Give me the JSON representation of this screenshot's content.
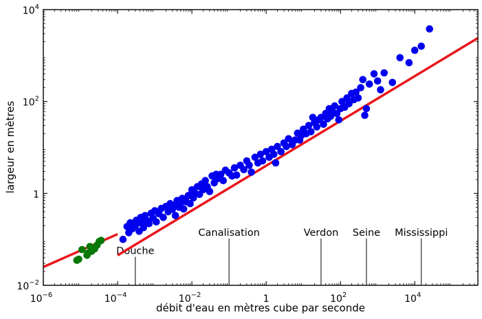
{
  "chart_data": {
    "type": "scatter",
    "xlabel": "débit d'eau en mètres cube par seconde",
    "ylabel": "largeur en mètres",
    "xscale": "log",
    "yscale": "log",
    "xlim": [
      1e-06,
      500000
    ],
    "ylim": [
      0.01,
      10000
    ],
    "grid": false,
    "x_ticks": [
      {
        "value": 1e-06,
        "base": "10",
        "exp": "−6"
      },
      {
        "value": 0.0001,
        "base": "10",
        "exp": "−4"
      },
      {
        "value": 0.01,
        "base": "10",
        "exp": "−2"
      },
      {
        "value": 1,
        "base": "1",
        "exp": ""
      },
      {
        "value": 100,
        "base": "10",
        "exp": "2"
      },
      {
        "value": 10000,
        "base": "10",
        "exp": "4"
      }
    ],
    "y_ticks": [
      {
        "value": 0.01,
        "base": "10",
        "exp": "−2"
      },
      {
        "value": 1,
        "base": "1",
        "exp": ""
      },
      {
        "value": 100,
        "base": "10",
        "exp": "2"
      },
      {
        "value": 10000,
        "base": "10",
        "exp": "4"
      }
    ],
    "annotations": [
      {
        "label": "Douche",
        "x": 0.0003,
        "label_y": 0.048
      },
      {
        "label": "Canalisation",
        "x": 0.1,
        "label_y": 0.12
      },
      {
        "label": "Verdon",
        "x": 30,
        "label_y": 0.12
      },
      {
        "label": "Seine",
        "x": 500,
        "label_y": 0.12
      },
      {
        "label": "Mississippi",
        "x": 15000,
        "label_y": 0.12
      }
    ],
    "fit_lines": [
      {
        "color": "#e8161b",
        "x": [
          1e-06,
          0.0001
        ],
        "y": [
          0.025,
          0.13
        ]
      },
      {
        "color": "#e8161b",
        "x": [
          0.0001,
          500000
        ],
        "y": [
          0.045,
          2400
        ]
      }
    ],
    "series": [
      {
        "color": "#0000ee",
        "points": [
          [
            0.00014,
            0.1
          ],
          [
            0.00018,
            0.19
          ],
          [
            0.0002,
            0.14
          ],
          [
            0.00022,
            0.23
          ],
          [
            0.00025,
            0.17
          ],
          [
            0.0003,
            0.2
          ],
          [
            0.00032,
            0.26
          ],
          [
            0.00038,
            0.15
          ],
          [
            0.00042,
            0.3
          ],
          [
            0.00045,
            0.22
          ],
          [
            0.0005,
            0.18
          ],
          [
            0.00055,
            0.33
          ],
          [
            0.0006,
            0.26
          ],
          [
            0.0007,
            0.22
          ],
          [
            0.0008,
            0.37
          ],
          [
            0.0009,
            0.29
          ],
          [
            0.001,
            0.42
          ],
          [
            0.0011,
            0.24
          ],
          [
            0.0013,
            0.36
          ],
          [
            0.0015,
            0.47
          ],
          [
            0.0017,
            0.3
          ],
          [
            0.002,
            0.52
          ],
          [
            0.0023,
            0.4
          ],
          [
            0.0026,
            0.6
          ],
          [
            0.003,
            0.45
          ],
          [
            0.0033,
            0.55
          ],
          [
            0.0036,
            0.33
          ],
          [
            0.004,
            0.7
          ],
          [
            0.0045,
            0.5
          ],
          [
            0.005,
            0.62
          ],
          [
            0.0055,
            0.78
          ],
          [
            0.006,
            0.46
          ],
          [
            0.007,
            0.66
          ],
          [
            0.008,
            0.9
          ],
          [
            0.009,
            0.6
          ],
          [
            0.01,
            1.2
          ],
          [
            0.011,
            0.8
          ],
          [
            0.012,
            1.0
          ],
          [
            0.014,
            1.4
          ],
          [
            0.016,
            0.95
          ],
          [
            0.018,
            1.6
          ],
          [
            0.02,
            1.2
          ],
          [
            0.023,
            1.9
          ],
          [
            0.026,
            1.4
          ],
          [
            0.03,
            1.1
          ],
          [
            0.035,
            2.4
          ],
          [
            0.04,
            1.7
          ],
          [
            0.045,
            2.6
          ],
          [
            0.05,
            2.1
          ],
          [
            0.06,
            2.6
          ],
          [
            0.07,
            1.9
          ],
          [
            0.08,
            3.2
          ],
          [
            0.1,
            2.8
          ],
          [
            0.12,
            2.4
          ],
          [
            0.14,
            3.6
          ],
          [
            0.16,
            2.5
          ],
          [
            0.2,
            4.1
          ],
          [
            0.25,
            3.3
          ],
          [
            0.3,
            5.1
          ],
          [
            0.35,
            4.1
          ],
          [
            0.4,
            2.9
          ],
          [
            0.5,
            6.1
          ],
          [
            0.6,
            4.6
          ],
          [
            0.7,
            7.1
          ],
          [
            0.8,
            5.1
          ],
          [
            1.0,
            8.1
          ],
          [
            1.2,
            6.1
          ],
          [
            1.4,
            9.1
          ],
          [
            1.6,
            7.1
          ],
          [
            1.8,
            4.6
          ],
          [
            2.0,
            10.5
          ],
          [
            2.5,
            8.1
          ],
          [
            3.0,
            12.5
          ],
          [
            3.5,
            10.5
          ],
          [
            4.0,
            15.5
          ],
          [
            5.0,
            11.5
          ],
          [
            6.0,
            14.5
          ],
          [
            7.0,
            20.5
          ],
          [
            8.0,
            14.5
          ],
          [
            9.0,
            18.5
          ],
          [
            10.0,
            25.0
          ],
          [
            12.0,
            20.0
          ],
          [
            14.0,
            30.0
          ],
          [
            16.0,
            22.0
          ],
          [
            18.0,
            45.0
          ],
          [
            20.0,
            35.0
          ],
          [
            23.0,
            28.0
          ],
          [
            26.0,
            40.0
          ],
          [
            30.0,
            45.0
          ],
          [
            35.0,
            32.0
          ],
          [
            40.0,
            55.0
          ],
          [
            45.0,
            42.0
          ],
          [
            50.0,
            70.0
          ],
          [
            55.0,
            48.0
          ],
          [
            60.0,
            60.0
          ],
          [
            70.0,
            80.0
          ],
          [
            80.0,
            55.0
          ],
          [
            90.0,
            40.0
          ],
          [
            100.0,
            70.0
          ],
          [
            110.0,
            100.0
          ],
          [
            130.0,
            75.0
          ],
          [
            150.0,
            120.0
          ],
          [
            170.0,
            90.0
          ],
          [
            200.0,
            150.0
          ],
          [
            230.0,
            110.0
          ],
          [
            260.0,
            160.0
          ],
          [
            300.0,
            120.0
          ],
          [
            350.0,
            200.0
          ],
          [
            400.0,
            300.0
          ],
          [
            450.0,
            50.0
          ],
          [
            500.0,
            70.0
          ],
          [
            600.0,
            240.0
          ],
          [
            800.0,
            400.0
          ],
          [
            1000.0,
            280.0
          ],
          [
            1200.0,
            180.0
          ],
          [
            1500.0,
            420.0
          ],
          [
            2500.0,
            260.0
          ],
          [
            4000.0,
            900.0
          ],
          [
            7000.0,
            700.0
          ],
          [
            10000.0,
            1300.0
          ],
          [
            15000.0,
            1600.0
          ],
          [
            25000.0,
            3800.0
          ]
        ]
      },
      {
        "color": "#087808",
        "points": [
          [
            8e-06,
            0.035
          ],
          [
            9e-06,
            0.037
          ],
          [
            1.1e-05,
            0.06
          ],
          [
            1.5e-05,
            0.045
          ],
          [
            1.6e-05,
            0.05
          ],
          [
            1.8e-05,
            0.07
          ],
          [
            2e-05,
            0.055
          ],
          [
            2.4e-05,
            0.062
          ],
          [
            2.8e-05,
            0.075
          ],
          [
            3.2e-05,
            0.09
          ],
          [
            3.6e-05,
            0.095
          ]
        ]
      }
    ]
  }
}
